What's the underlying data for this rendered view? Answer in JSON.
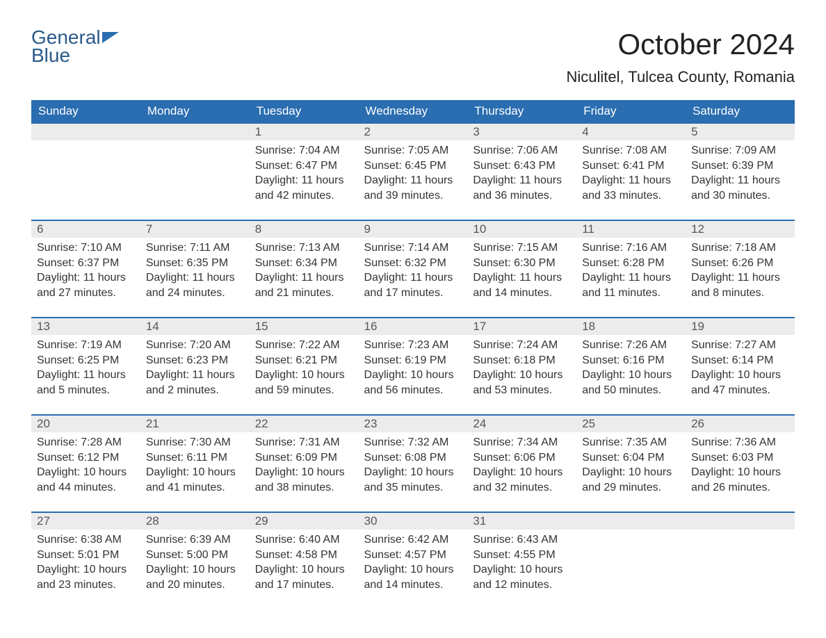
{
  "logo": {
    "line1": "General",
    "line2": "Blue"
  },
  "title": "October 2024",
  "location": "Niculitel, Tulcea County, Romania",
  "colors": {
    "header_bg": "#2a6db0",
    "header_text": "#ffffff",
    "daynum_bg": "#ececec",
    "row_border": "#2a6db0",
    "logo_text": "#2a5a8a",
    "body_text": "#333333"
  },
  "day_labels": [
    "Sunday",
    "Monday",
    "Tuesday",
    "Wednesday",
    "Thursday",
    "Friday",
    "Saturday"
  ],
  "weeks": [
    [
      {
        "n": "",
        "sunrise": "",
        "sunset": "",
        "daylight": ""
      },
      {
        "n": "",
        "sunrise": "",
        "sunset": "",
        "daylight": ""
      },
      {
        "n": "1",
        "sunrise": "Sunrise: 7:04 AM",
        "sunset": "Sunset: 6:47 PM",
        "daylight": "Daylight: 11 hours and 42 minutes."
      },
      {
        "n": "2",
        "sunrise": "Sunrise: 7:05 AM",
        "sunset": "Sunset: 6:45 PM",
        "daylight": "Daylight: 11 hours and 39 minutes."
      },
      {
        "n": "3",
        "sunrise": "Sunrise: 7:06 AM",
        "sunset": "Sunset: 6:43 PM",
        "daylight": "Daylight: 11 hours and 36 minutes."
      },
      {
        "n": "4",
        "sunrise": "Sunrise: 7:08 AM",
        "sunset": "Sunset: 6:41 PM",
        "daylight": "Daylight: 11 hours and 33 minutes."
      },
      {
        "n": "5",
        "sunrise": "Sunrise: 7:09 AM",
        "sunset": "Sunset: 6:39 PM",
        "daylight": "Daylight: 11 hours and 30 minutes."
      }
    ],
    [
      {
        "n": "6",
        "sunrise": "Sunrise: 7:10 AM",
        "sunset": "Sunset: 6:37 PM",
        "daylight": "Daylight: 11 hours and 27 minutes."
      },
      {
        "n": "7",
        "sunrise": "Sunrise: 7:11 AM",
        "sunset": "Sunset: 6:35 PM",
        "daylight": "Daylight: 11 hours and 24 minutes."
      },
      {
        "n": "8",
        "sunrise": "Sunrise: 7:13 AM",
        "sunset": "Sunset: 6:34 PM",
        "daylight": "Daylight: 11 hours and 21 minutes."
      },
      {
        "n": "9",
        "sunrise": "Sunrise: 7:14 AM",
        "sunset": "Sunset: 6:32 PM",
        "daylight": "Daylight: 11 hours and 17 minutes."
      },
      {
        "n": "10",
        "sunrise": "Sunrise: 7:15 AM",
        "sunset": "Sunset: 6:30 PM",
        "daylight": "Daylight: 11 hours and 14 minutes."
      },
      {
        "n": "11",
        "sunrise": "Sunrise: 7:16 AM",
        "sunset": "Sunset: 6:28 PM",
        "daylight": "Daylight: 11 hours and 11 minutes."
      },
      {
        "n": "12",
        "sunrise": "Sunrise: 7:18 AM",
        "sunset": "Sunset: 6:26 PM",
        "daylight": "Daylight: 11 hours and 8 minutes."
      }
    ],
    [
      {
        "n": "13",
        "sunrise": "Sunrise: 7:19 AM",
        "sunset": "Sunset: 6:25 PM",
        "daylight": "Daylight: 11 hours and 5 minutes."
      },
      {
        "n": "14",
        "sunrise": "Sunrise: 7:20 AM",
        "sunset": "Sunset: 6:23 PM",
        "daylight": "Daylight: 11 hours and 2 minutes."
      },
      {
        "n": "15",
        "sunrise": "Sunrise: 7:22 AM",
        "sunset": "Sunset: 6:21 PM",
        "daylight": "Daylight: 10 hours and 59 minutes."
      },
      {
        "n": "16",
        "sunrise": "Sunrise: 7:23 AM",
        "sunset": "Sunset: 6:19 PM",
        "daylight": "Daylight: 10 hours and 56 minutes."
      },
      {
        "n": "17",
        "sunrise": "Sunrise: 7:24 AM",
        "sunset": "Sunset: 6:18 PM",
        "daylight": "Daylight: 10 hours and 53 minutes."
      },
      {
        "n": "18",
        "sunrise": "Sunrise: 7:26 AM",
        "sunset": "Sunset: 6:16 PM",
        "daylight": "Daylight: 10 hours and 50 minutes."
      },
      {
        "n": "19",
        "sunrise": "Sunrise: 7:27 AM",
        "sunset": "Sunset: 6:14 PM",
        "daylight": "Daylight: 10 hours and 47 minutes."
      }
    ],
    [
      {
        "n": "20",
        "sunrise": "Sunrise: 7:28 AM",
        "sunset": "Sunset: 6:12 PM",
        "daylight": "Daylight: 10 hours and 44 minutes."
      },
      {
        "n": "21",
        "sunrise": "Sunrise: 7:30 AM",
        "sunset": "Sunset: 6:11 PM",
        "daylight": "Daylight: 10 hours and 41 minutes."
      },
      {
        "n": "22",
        "sunrise": "Sunrise: 7:31 AM",
        "sunset": "Sunset: 6:09 PM",
        "daylight": "Daylight: 10 hours and 38 minutes."
      },
      {
        "n": "23",
        "sunrise": "Sunrise: 7:32 AM",
        "sunset": "Sunset: 6:08 PM",
        "daylight": "Daylight: 10 hours and 35 minutes."
      },
      {
        "n": "24",
        "sunrise": "Sunrise: 7:34 AM",
        "sunset": "Sunset: 6:06 PM",
        "daylight": "Daylight: 10 hours and 32 minutes."
      },
      {
        "n": "25",
        "sunrise": "Sunrise: 7:35 AM",
        "sunset": "Sunset: 6:04 PM",
        "daylight": "Daylight: 10 hours and 29 minutes."
      },
      {
        "n": "26",
        "sunrise": "Sunrise: 7:36 AM",
        "sunset": "Sunset: 6:03 PM",
        "daylight": "Daylight: 10 hours and 26 minutes."
      }
    ],
    [
      {
        "n": "27",
        "sunrise": "Sunrise: 6:38 AM",
        "sunset": "Sunset: 5:01 PM",
        "daylight": "Daylight: 10 hours and 23 minutes."
      },
      {
        "n": "28",
        "sunrise": "Sunrise: 6:39 AM",
        "sunset": "Sunset: 5:00 PM",
        "daylight": "Daylight: 10 hours and 20 minutes."
      },
      {
        "n": "29",
        "sunrise": "Sunrise: 6:40 AM",
        "sunset": "Sunset: 4:58 PM",
        "daylight": "Daylight: 10 hours and 17 minutes."
      },
      {
        "n": "30",
        "sunrise": "Sunrise: 6:42 AM",
        "sunset": "Sunset: 4:57 PM",
        "daylight": "Daylight: 10 hours and 14 minutes."
      },
      {
        "n": "31",
        "sunrise": "Sunrise: 6:43 AM",
        "sunset": "Sunset: 4:55 PM",
        "daylight": "Daylight: 10 hours and 12 minutes."
      },
      {
        "n": "",
        "sunrise": "",
        "sunset": "",
        "daylight": ""
      },
      {
        "n": "",
        "sunrise": "",
        "sunset": "",
        "daylight": ""
      }
    ]
  ]
}
